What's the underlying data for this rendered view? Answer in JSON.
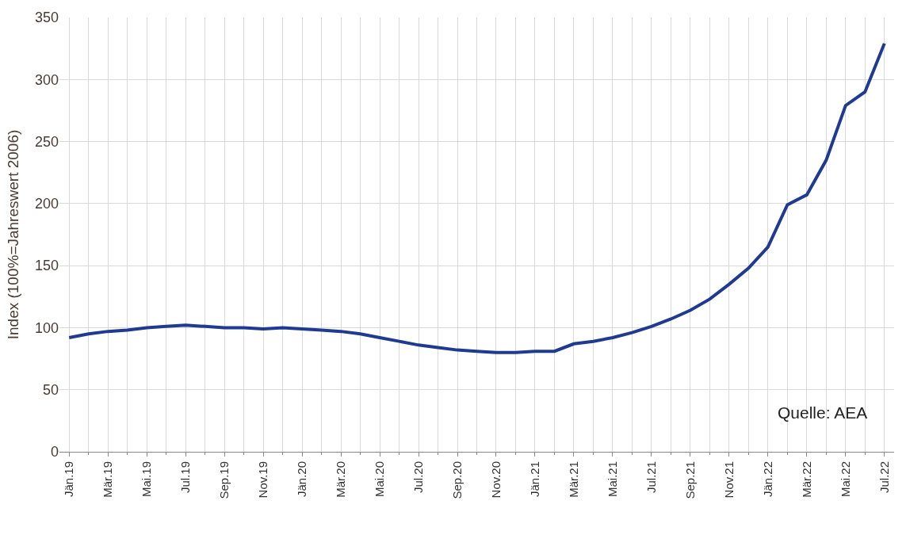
{
  "chart_data": {
    "type": "line",
    "ylabel": "Index (100%=Jahreswert 2006)",
    "categories": [
      "Jän.19",
      null,
      "Mär.19",
      null,
      "Mai.19",
      null,
      "Jul.19",
      null,
      "Sep.19",
      null,
      "Nov.19",
      null,
      "Jän.20",
      null,
      "Mär.20",
      null,
      "Mai.20",
      null,
      "Jul.20",
      null,
      "Sep.20",
      null,
      "Nov.20",
      null,
      "Jän.21",
      null,
      "Mär.21",
      null,
      "Mai.21",
      null,
      "Jul.21",
      null,
      "Sep.21",
      null,
      "Nov.21",
      null,
      "Jän.22",
      null,
      "Mär.22",
      null,
      "Mai.22",
      null,
      "Jul.22"
    ],
    "series": [
      {
        "color": "#1f3a93",
        "values": [
          92,
          95,
          97,
          98,
          100,
          101,
          102,
          101,
          100,
          100,
          99,
          100,
          99,
          98,
          97,
          95,
          92,
          89,
          86,
          84,
          82,
          81,
          80,
          80,
          81,
          81,
          87,
          89,
          92,
          96,
          101,
          107,
          114,
          123,
          135,
          148,
          165,
          199,
          207,
          235,
          279,
          290,
          329
        ]
      }
    ],
    "ylim": [
      0,
      350
    ],
    "yticks": [
      0,
      50,
      100,
      150,
      200,
      250,
      300,
      350
    ],
    "grid": true,
    "legend": false,
    "line_style": "solid",
    "marker": "none",
    "annotations": [
      "Quelle: AEA"
    ]
  }
}
